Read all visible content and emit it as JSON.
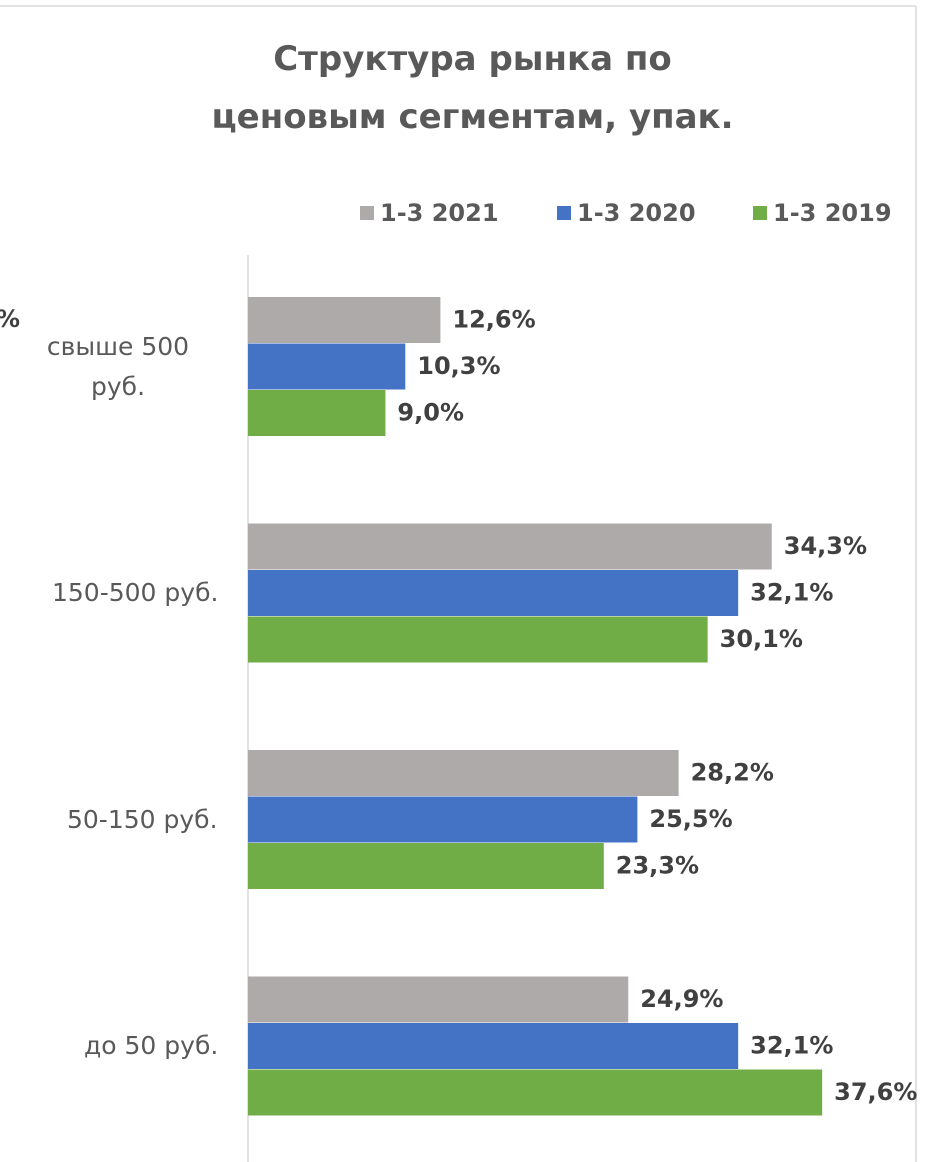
{
  "chart_data": {
    "type": "hbar",
    "title": "Структура рынка по ценовым сегментам, упак.",
    "annotation": "%",
    "categories": [
      "свыше 500 руб.",
      "150-500 руб.",
      "50-150 руб.",
      "до 50 руб."
    ],
    "series": [
      {
        "name": "1-3 2021",
        "color": "#aeaaaa",
        "values": [
          12.6,
          34.3,
          28.2,
          24.9
        ],
        "value_labels": [
          "12,6%",
          "34,3%",
          "28,2%",
          "24,9%"
        ]
      },
      {
        "name": "1-3 2020",
        "color": "#4472c4",
        "values": [
          10.3,
          32.1,
          25.5,
          32.1
        ],
        "value_labels": [
          "10,3%",
          "32,1%",
          "25,5%",
          "32,1%"
        ]
      },
      {
        "name": "1-3 2019",
        "color": "#70ad47",
        "values": [
          9.0,
          30.1,
          23.3,
          37.6
        ],
        "value_labels": [
          "9,0%",
          "30,1%",
          "23,3%",
          "37,6%"
        ]
      }
    ],
    "xlim": [
      0,
      40
    ],
    "legend": "top"
  }
}
